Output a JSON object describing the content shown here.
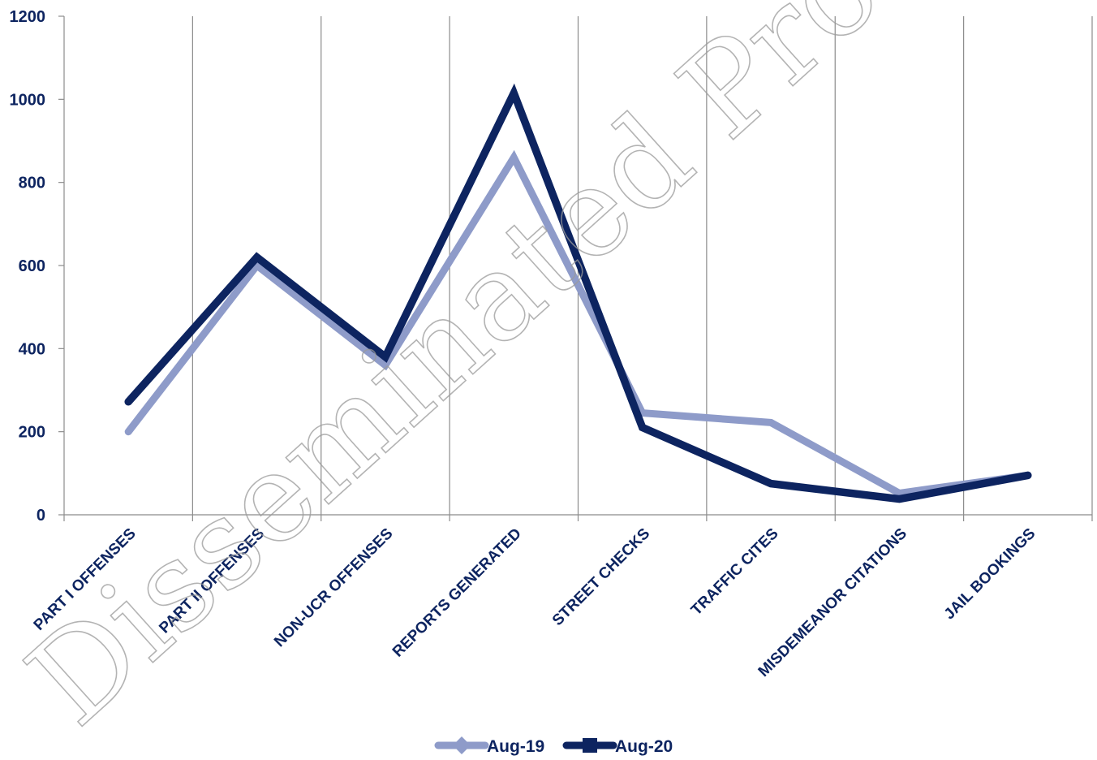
{
  "watermark": "Disseminated Product Incl",
  "chart_data": {
    "type": "line",
    "categories": [
      "PART I OFFENSES",
      "PART II OFFENSES",
      "NON-UCR OFFENSES",
      "REPORTS GENERATED",
      "STREET CHECKS",
      "TRAFFIC CITES",
      "MISDEMEANOR CITATIONS",
      "JAIL BOOKINGS"
    ],
    "series": [
      {
        "name": "Aug-19",
        "color": "#8e9bc9",
        "values": [
          200,
          600,
          360,
          860,
          245,
          222,
          52,
          95
        ]
      },
      {
        "name": "Aug-20",
        "color": "#0d2460",
        "values": [
          272,
          620,
          380,
          1015,
          210,
          75,
          38,
          95
        ]
      }
    ],
    "ylim": [
      0,
      1200
    ],
    "yticks": [
      "0",
      "200",
      "400",
      "600",
      "800",
      "1000",
      "1200"
    ],
    "vertical_gridlines": true,
    "legend_position": "bottom-center",
    "title": "",
    "xlabel": "",
    "ylabel": ""
  }
}
